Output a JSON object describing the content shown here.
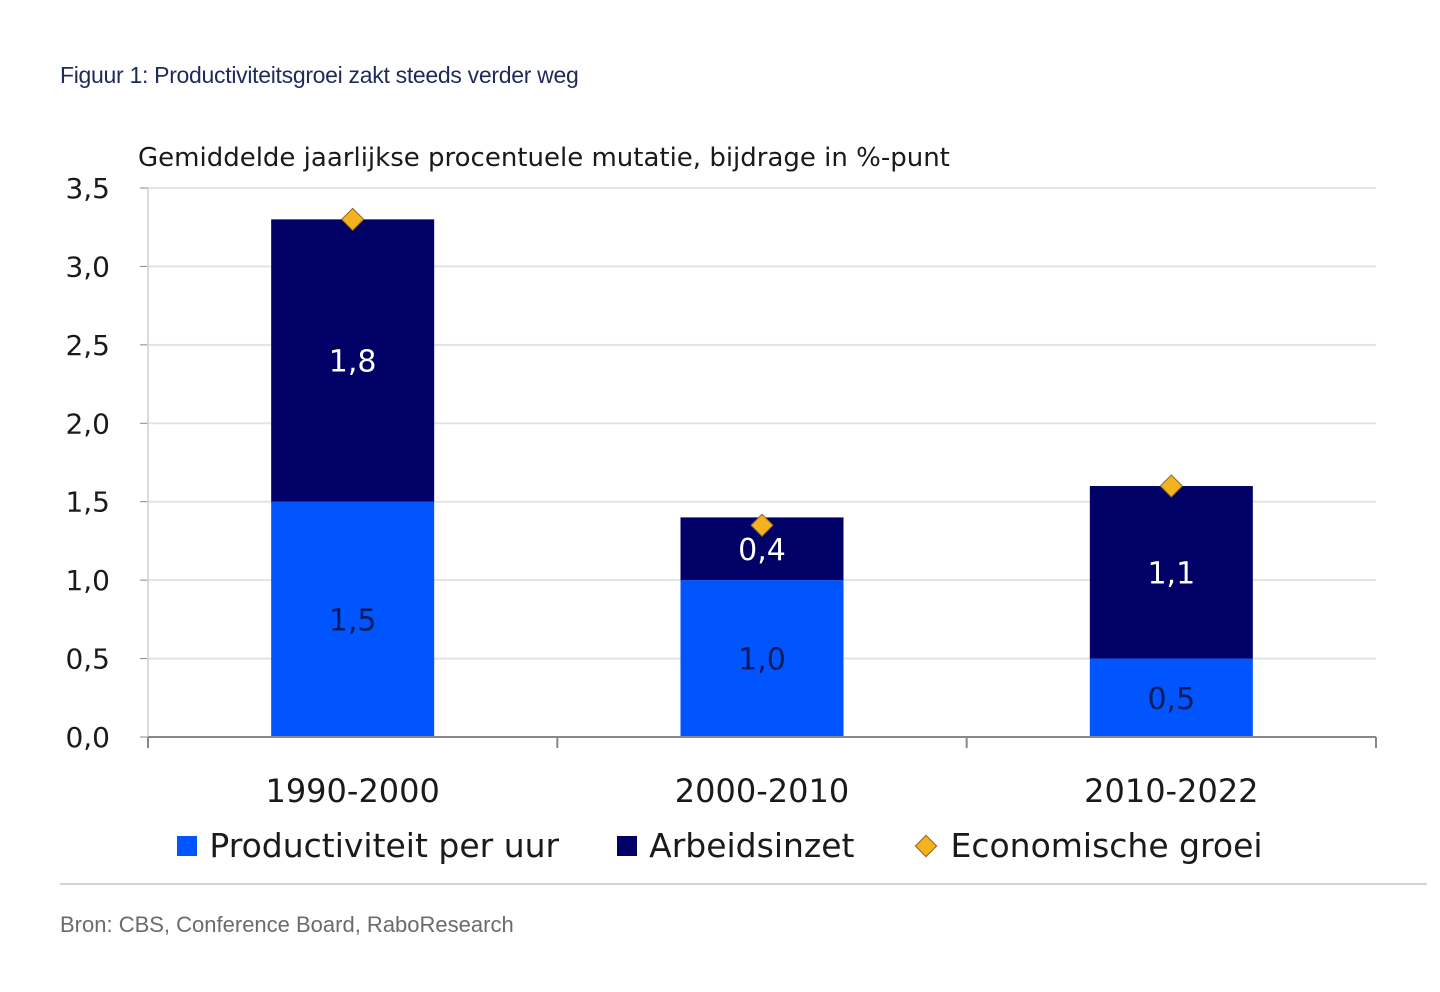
{
  "figure": {
    "title": "Figuur 1: Productiviteitsgroei zakt steeds verder weg",
    "source": "Bron: CBS, Conference Board, RaboResearch"
  },
  "colors": {
    "productivity": "#0055ff",
    "labour": "#000066",
    "growth_marker": "#f5b21f",
    "grid": "#e3e3e3",
    "axis": "#888888"
  },
  "chart_data": {
    "type": "bar",
    "stacked": true,
    "subtitle": "Gemiddelde jaarlijkse procentuele mutatie, bijdrage in %-punt",
    "categories": [
      "1990-2000",
      "2000-2010",
      "2010-2022"
    ],
    "series": [
      {
        "name": "Productiviteit per uur",
        "kind": "bar",
        "values": [
          1.5,
          1.0,
          0.5
        ],
        "labels": [
          "1,5",
          "1,0",
          "0,5"
        ]
      },
      {
        "name": "Arbeidsinzet",
        "kind": "bar",
        "values": [
          1.8,
          0.4,
          1.1
        ],
        "labels": [
          "1,8",
          "0,4",
          "1,1"
        ]
      },
      {
        "name": "Economische groei",
        "kind": "marker",
        "values": [
          3.3,
          1.35,
          1.6
        ]
      }
    ],
    "ylim": [
      0,
      3.5
    ],
    "yticks": [
      0,
      0.5,
      1.0,
      1.5,
      2.0,
      2.5,
      3.0,
      3.5
    ],
    "ytick_labels": [
      "0,0",
      "0,5",
      "1,0",
      "1,5",
      "2,0",
      "2,5",
      "3,0",
      "3,5"
    ],
    "xlabel": "",
    "ylabel": "",
    "grid": true,
    "legend_position": "bottom"
  }
}
